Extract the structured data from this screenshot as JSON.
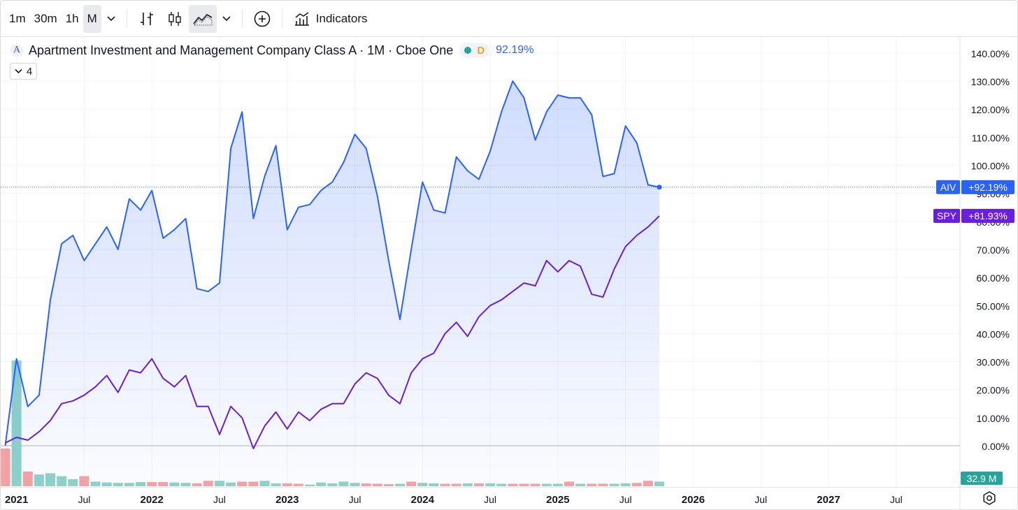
{
  "toolbar": {
    "intervals": [
      "1m",
      "30m",
      "1h",
      "M"
    ],
    "active_interval": "M",
    "indicators_label": "Indicators",
    "icons": [
      "chevron-down-icon",
      "bar-chart-icon",
      "candlestick-icon",
      "area-chart-icon",
      "chevron-down-icon",
      "add-compare-icon",
      "indicators-icon"
    ]
  },
  "legend": {
    "title": "Apartment Investment and Management Company Class A · 1M · Cboe One",
    "logo_letter": "A",
    "market_status_letter": "D",
    "value": "92.19%",
    "collapsed_count": "4"
  },
  "colors": {
    "aiv": "#2962ff",
    "spy": "#6a1ee0",
    "vol_up": "#8fd3c8",
    "vol_down": "#f6a3a3",
    "grid": "#f0f3fa",
    "zero_line": "#b2b5be"
  },
  "chart_data": {
    "type": "line",
    "y_unit": "%",
    "ylim": [
      -13,
      142
    ],
    "y_ticks": [
      "140.00%",
      "130.00%",
      "120.00%",
      "110.00%",
      "100.00%",
      "90.00%",
      "80.00%",
      "70.00%",
      "60.00%",
      "50.00%",
      "40.00%",
      "30.00%",
      "20.00%",
      "10.00%",
      "0.00%"
    ],
    "x_tick_labels": [
      "2021",
      "Jul",
      "2022",
      "Jul",
      "2023",
      "Jul",
      "2024",
      "Jul",
      "2025",
      "Jul",
      "2026",
      "Jul",
      "2027",
      "Jul"
    ],
    "x_start": "2020-12",
    "x_end": "2025-09",
    "series": [
      {
        "name": "AIV",
        "last_label": "+92.19%",
        "values": [
          0,
          31,
          14,
          18,
          52,
          72,
          75,
          66,
          72,
          78,
          70,
          88,
          84,
          91,
          74,
          77,
          81,
          56,
          55,
          58,
          106,
          119,
          81,
          96,
          107,
          77,
          85,
          86,
          91,
          94,
          101,
          111,
          106,
          89,
          66,
          45,
          70,
          94,
          84,
          83,
          103,
          98,
          95,
          105,
          119,
          130,
          124,
          109,
          119,
          125,
          124,
          124,
          118,
          96,
          97,
          114,
          108,
          93,
          92.19
        ]
      },
      {
        "name": "SPY",
        "last_label": "+81.93%",
        "values": [
          1,
          3,
          2,
          5,
          9,
          15,
          16,
          18,
          21,
          25,
          19,
          27,
          26,
          31,
          24,
          21,
          25,
          14,
          14,
          4,
          14,
          10,
          -1,
          7,
          12,
          6,
          12,
          9,
          13,
          15,
          15,
          22,
          26,
          24,
          18,
          15,
          26,
          31,
          33,
          40,
          44,
          39,
          46,
          50,
          52,
          55,
          58,
          57,
          66,
          62,
          66,
          64,
          54,
          53,
          63,
          71,
          75,
          78,
          81.93
        ]
      }
    ],
    "volume": {
      "last_label": "32.9 M",
      "values": [
        9,
        30,
        3.5,
        2.8,
        3.1,
        2.4,
        1.7,
        2.4,
        1.1,
        0.9,
        0.8,
        0.8,
        1.0,
        1.0,
        1.0,
        0.9,
        0.8,
        0.7,
        1.3,
        1.3,
        0.9,
        1.1,
        1.1,
        1.3,
        0.7,
        0.7,
        0.6,
        0.4,
        0.9,
        0.7,
        1.1,
        0.8,
        0.7,
        0.6,
        0.5,
        0.6,
        1.1,
        0.8,
        0.7,
        0.6,
        0.6,
        0.7,
        0.7,
        0.7,
        0.6,
        0.6,
        0.6,
        0.6,
        0.6,
        0.6,
        1.1,
        0.6,
        0.6,
        0.6,
        0.6,
        0.7,
        0.8,
        1.3,
        1.1
      ],
      "up": [
        false,
        true,
        false,
        true,
        true,
        true,
        true,
        false,
        true,
        true,
        true,
        true,
        true,
        false,
        false,
        true,
        true,
        false,
        false,
        true,
        true,
        false,
        false,
        true,
        true,
        false,
        false,
        true,
        true,
        true,
        true,
        true,
        false,
        false,
        false,
        true,
        false,
        true,
        true,
        false,
        false,
        true,
        false,
        true,
        true,
        false,
        false,
        false,
        true,
        true,
        false,
        true,
        false,
        false,
        true,
        true,
        false,
        false,
        true
      ]
    }
  }
}
